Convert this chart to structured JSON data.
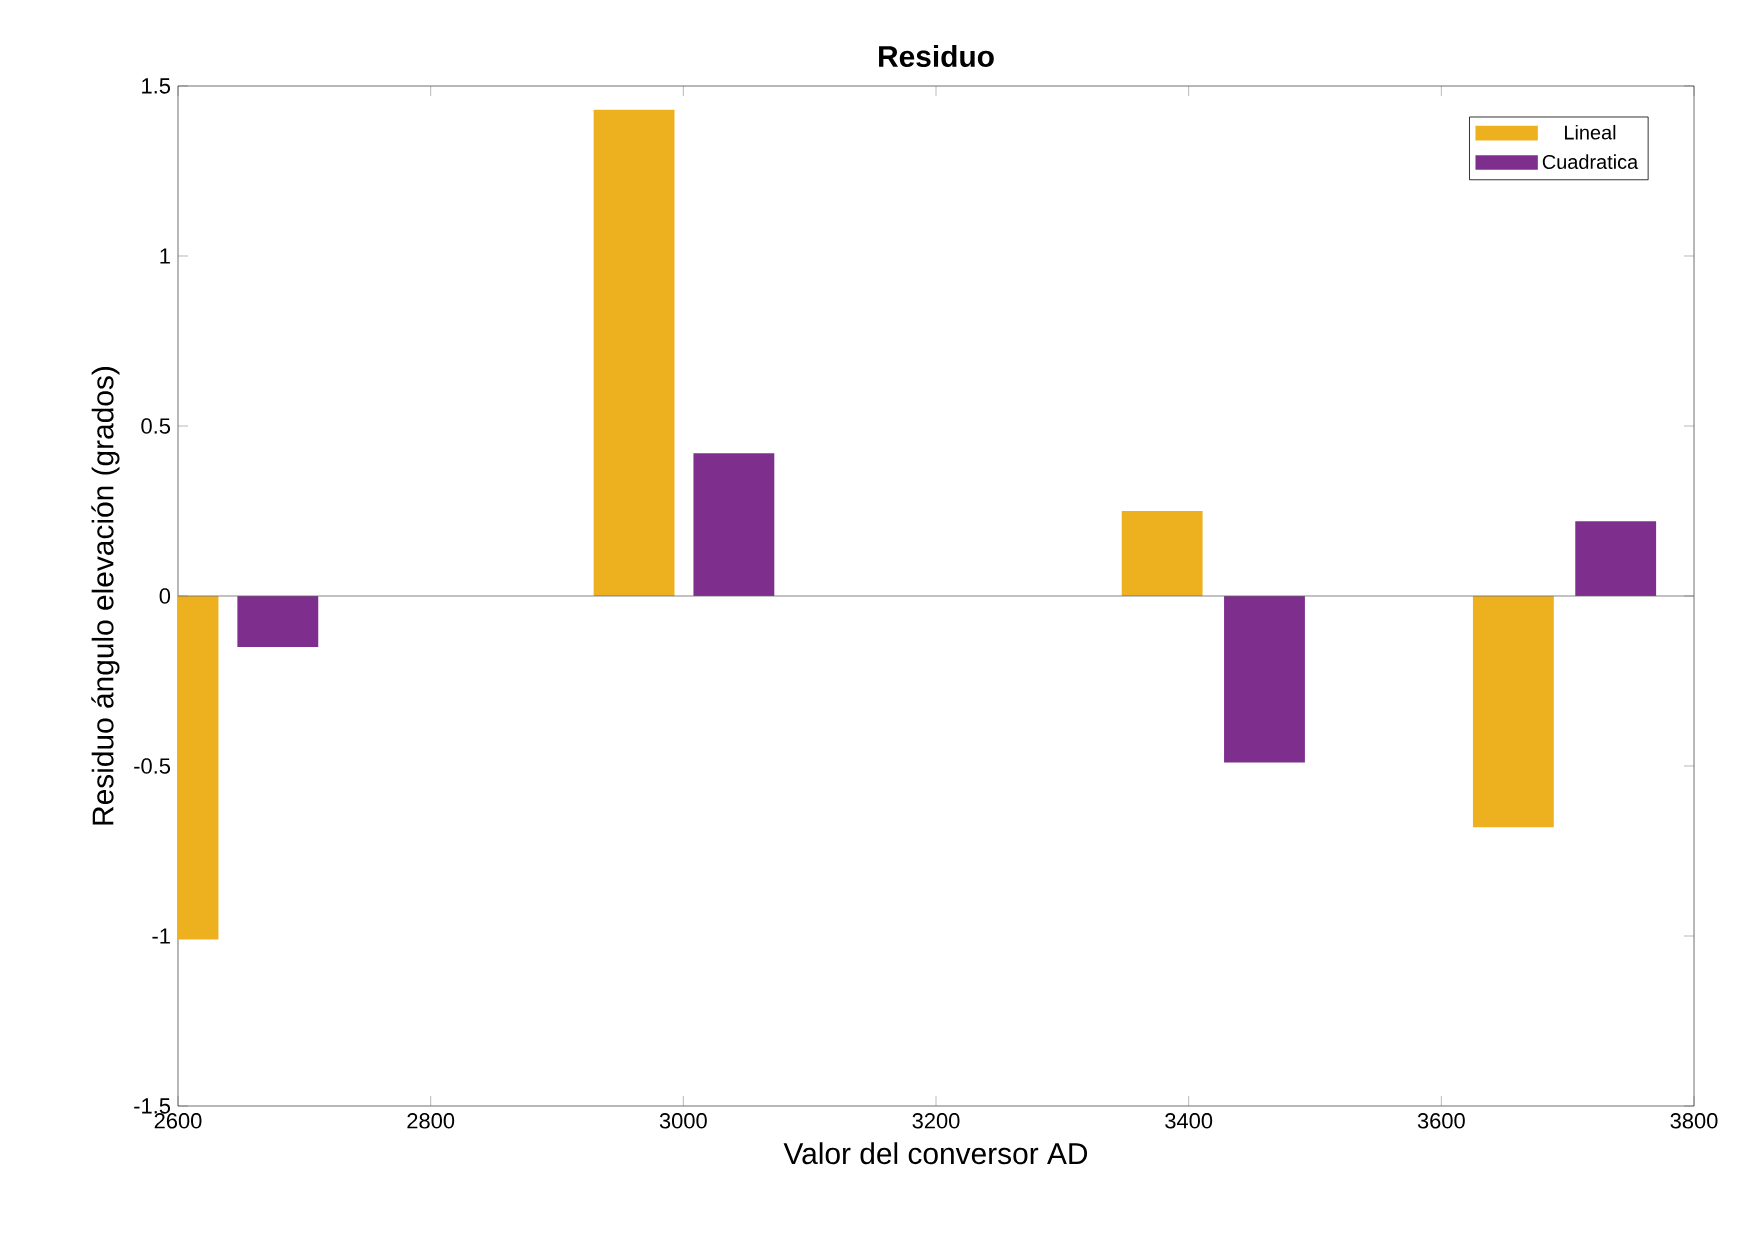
{
  "chart_data": {
    "type": "bar",
    "title": "Residuo",
    "xlabel": "Valor del conversor AD",
    "ylabel": "Residuo ángulo elevación (grados)",
    "series": [
      {
        "name": "Lineal",
        "color": "#edb120",
        "x": [
          2600,
          2961,
          3379,
          3657
        ],
        "values": [
          -1.01,
          1.43,
          0.25,
          -0.68
        ]
      },
      {
        "name": "Cuadratica",
        "color": "#7e2f8e",
        "x": [
          2679,
          3040,
          3460,
          3738
        ],
        "values": [
          -0.15,
          0.42,
          -0.49,
          0.22
        ]
      }
    ],
    "xlim": [
      2600,
      3800
    ],
    "ylim": [
      -1.5,
      1.5
    ],
    "xticks": [
      2600,
      2800,
      3000,
      3200,
      3400,
      3600,
      3800
    ],
    "yticks": [
      -1.5,
      -1,
      -0.5,
      0,
      0.5,
      1,
      1.5
    ],
    "legend": "top right"
  }
}
